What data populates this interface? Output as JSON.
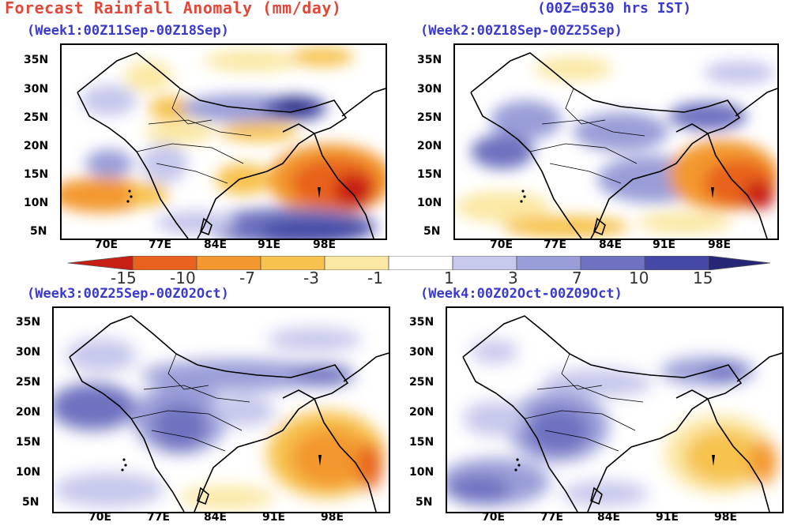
{
  "header": {
    "title": "Forecast Rainfall Anomaly (mm/day)",
    "time_note": "(00Z=0530 hrs IST)"
  },
  "panels": [
    {
      "title": "(Week1:00Z11Sep-00Z18Sep)"
    },
    {
      "title": "(Week2:00Z18Sep-00Z25Sep)"
    },
    {
      "title": "(Week3:00Z25Sep-00Z02Oct)"
    },
    {
      "title": "(Week4:00Z02Oct-00Z09Oct)"
    }
  ],
  "axes": {
    "lat_labels": [
      "35N",
      "30N",
      "25N",
      "20N",
      "15N",
      "10N",
      "5N"
    ],
    "lon_labels": [
      "70E",
      "77E",
      "84E",
      "91E",
      "98E"
    ]
  },
  "colorbar": {
    "labels": [
      "-15",
      "-10",
      "-7",
      "-3",
      "-1",
      "1",
      "3",
      "7",
      "10",
      "15"
    ],
    "colors": [
      "#c81e14",
      "#e8621e",
      "#f3982e",
      "#f7c24e",
      "#fbe8a4",
      "#ffffff",
      "#ffffff",
      "#c6c8ec",
      "#9a9ed8",
      "#6e72c0",
      "#4548a4",
      "#252675"
    ]
  }
}
